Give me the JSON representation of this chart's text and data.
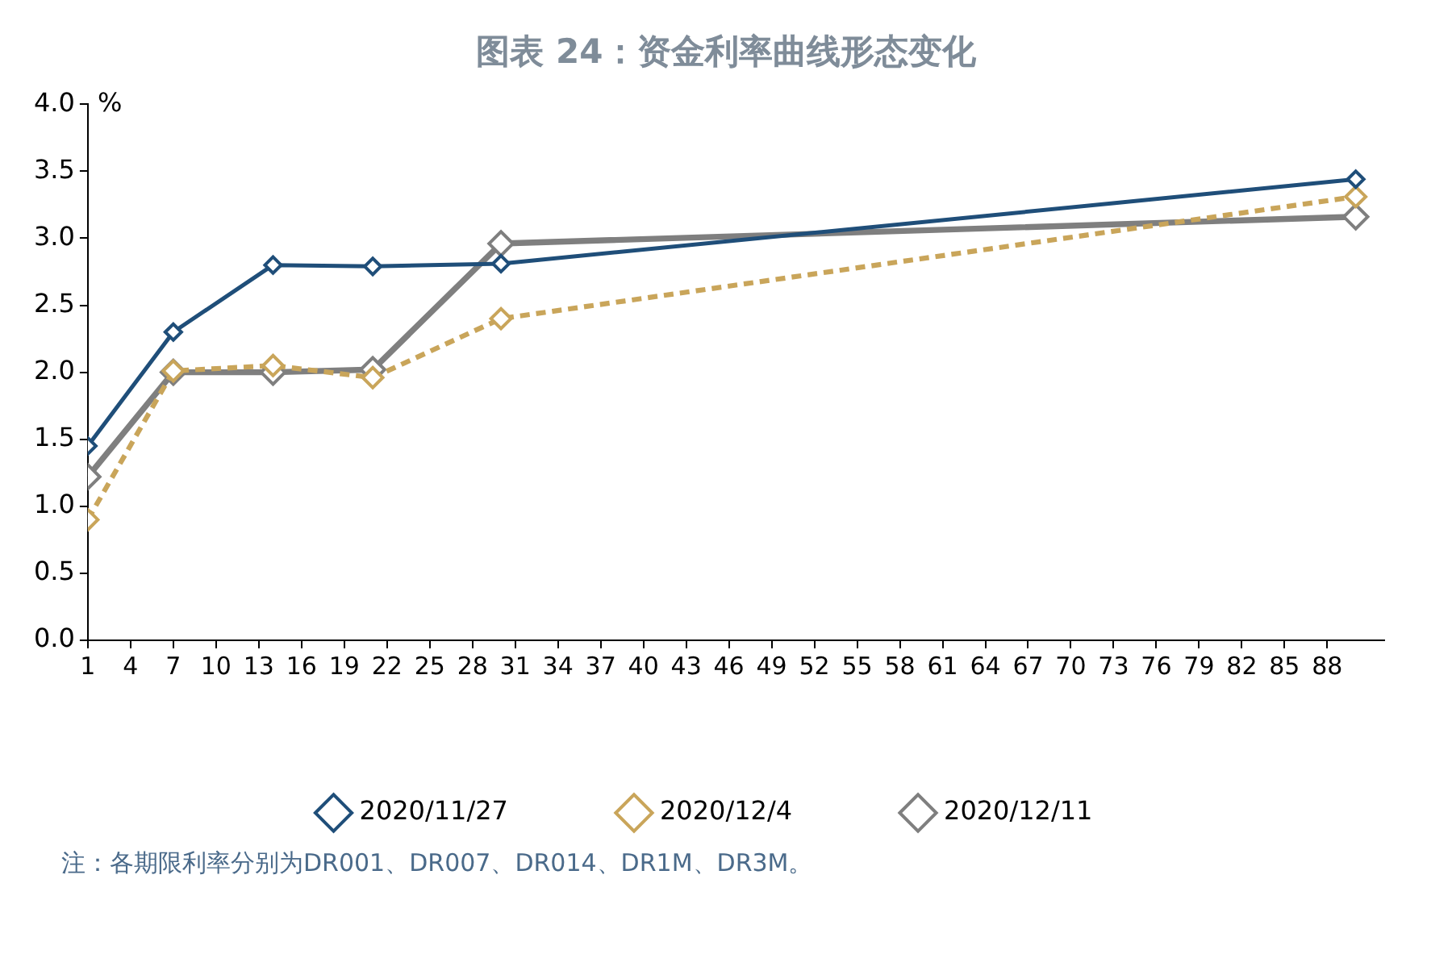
{
  "chart_data": {
    "type": "line",
    "title": "图表 24：资金利率曲线形态变化",
    "ylabel": "%",
    "x": [
      1,
      7,
      14,
      21,
      30,
      90
    ],
    "series": [
      {
        "name": "2020/11/27",
        "color": "#1f4e79",
        "values": [
          1.45,
          2.3,
          2.8,
          2.79,
          2.81,
          3.44
        ],
        "line_style": "solid"
      },
      {
        "name": "2020/12/4",
        "color": "#c9a55a",
        "values": [
          0.9,
          2.01,
          2.05,
          1.96,
          2.4,
          3.31
        ],
        "line_style": "dashed"
      },
      {
        "name": "2020/12/11",
        "color": "#7f7f7f",
        "values": [
          1.22,
          2.0,
          2.0,
          2.02,
          2.96,
          3.16
        ],
        "line_style": "solid"
      }
    ],
    "xlim": [
      1,
      92
    ],
    "xticks": [
      1,
      4,
      7,
      10,
      13,
      16,
      19,
      22,
      25,
      28,
      31,
      34,
      37,
      40,
      43,
      46,
      49,
      52,
      55,
      58,
      61,
      64,
      67,
      70,
      73,
      76,
      79,
      82,
      85,
      88
    ],
    "ylim": [
      0,
      4
    ],
    "yticks": [
      {
        "value": 0,
        "label": "0.0"
      },
      {
        "value": 0.5,
        "label": "0.5"
      },
      {
        "value": 1,
        "label": "1.0"
      },
      {
        "value": 1.5,
        "label": "1.5"
      },
      {
        "value": 2,
        "label": "2.0"
      },
      {
        "value": 2.5,
        "label": "2.5"
      },
      {
        "value": 3,
        "label": "3.0"
      },
      {
        "value": 3.5,
        "label": "3.5"
      },
      {
        "value": 4,
        "label": "4.0"
      }
    ],
    "grid": false,
    "legend": "bottom",
    "marker": "diamond",
    "annotations": [
      "注：各期限利率分别为DR001、DR007、DR014、DR1M、DR3M。"
    ]
  }
}
